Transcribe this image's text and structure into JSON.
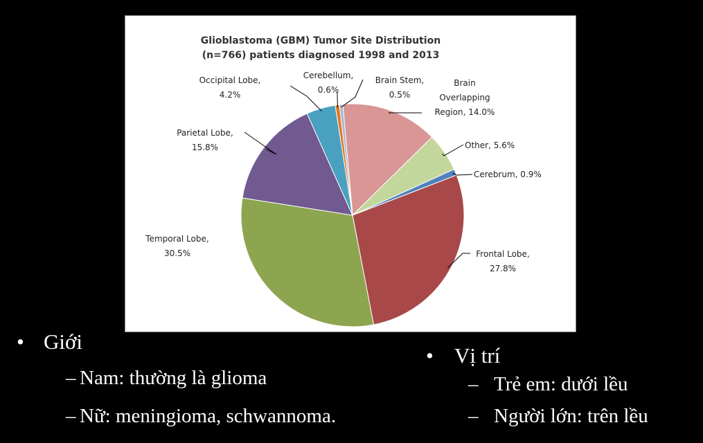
{
  "chart_data": {
    "type": "pie",
    "title": "Glioblastoma (GBM) Tumor Site Distribution",
    "subtitle": "(n=766) patients diagnosed 1998 and 2013",
    "slices": [
      {
        "label": "Brain Overlapping Region, 14.0%",
        "lines": [
          "Brain",
          "Overlapping",
          "Region, 14.0%"
        ],
        "value": 14.0,
        "color": "#d99694"
      },
      {
        "label": "Other, 5.6%",
        "lines": [
          "Other, 5.6%"
        ],
        "value": 5.6,
        "color": "#c3d69b"
      },
      {
        "label": "Cerebrum, 0.9%",
        "lines": [
          "Cerebrum, 0.9%"
        ],
        "value": 0.9,
        "color": "#4f81bd"
      },
      {
        "label": "Frontal Lobe, 27.8%",
        "lines": [
          "Frontal Lobe,",
          "27.8%"
        ],
        "value": 27.8,
        "color": "#a84848"
      },
      {
        "label": "Temporal Lobe, 30.5%",
        "lines": [
          "Temporal Lobe,",
          "30.5%"
        ],
        "value": 30.5,
        "color": "#8ea550"
      },
      {
        "label": "Parietal Lobe, 15.8%",
        "lines": [
          "Parietal Lobe,",
          "15.8%"
        ],
        "value": 15.8,
        "color": "#705a90"
      },
      {
        "label": "Occipital Lobe, 4.2%",
        "lines": [
          "Occipital Lobe,",
          "4.2%"
        ],
        "value": 4.2,
        "color": "#4aa0bf"
      },
      {
        "label": "Cerebellum, 0.6%",
        "lines": [
          "Cerebellum,",
          "0.6%"
        ],
        "value": 0.6,
        "color": "#e07a28"
      },
      {
        "label": "Brain Stem, 0.5%",
        "lines": [
          "Brain Stem,",
          "0.5%"
        ],
        "value": 0.5,
        "color": "#a9b7d6"
      }
    ]
  },
  "bullets": {
    "left": {
      "heading": "Giới",
      "items": [
        "Nam: thường là glioma",
        "Nữ: meningioma, schwannoma."
      ]
    },
    "right": {
      "heading": "Vị trí",
      "items": [
        "Trẻ em: dưới lều",
        "Người lớn: trên lều"
      ]
    }
  }
}
